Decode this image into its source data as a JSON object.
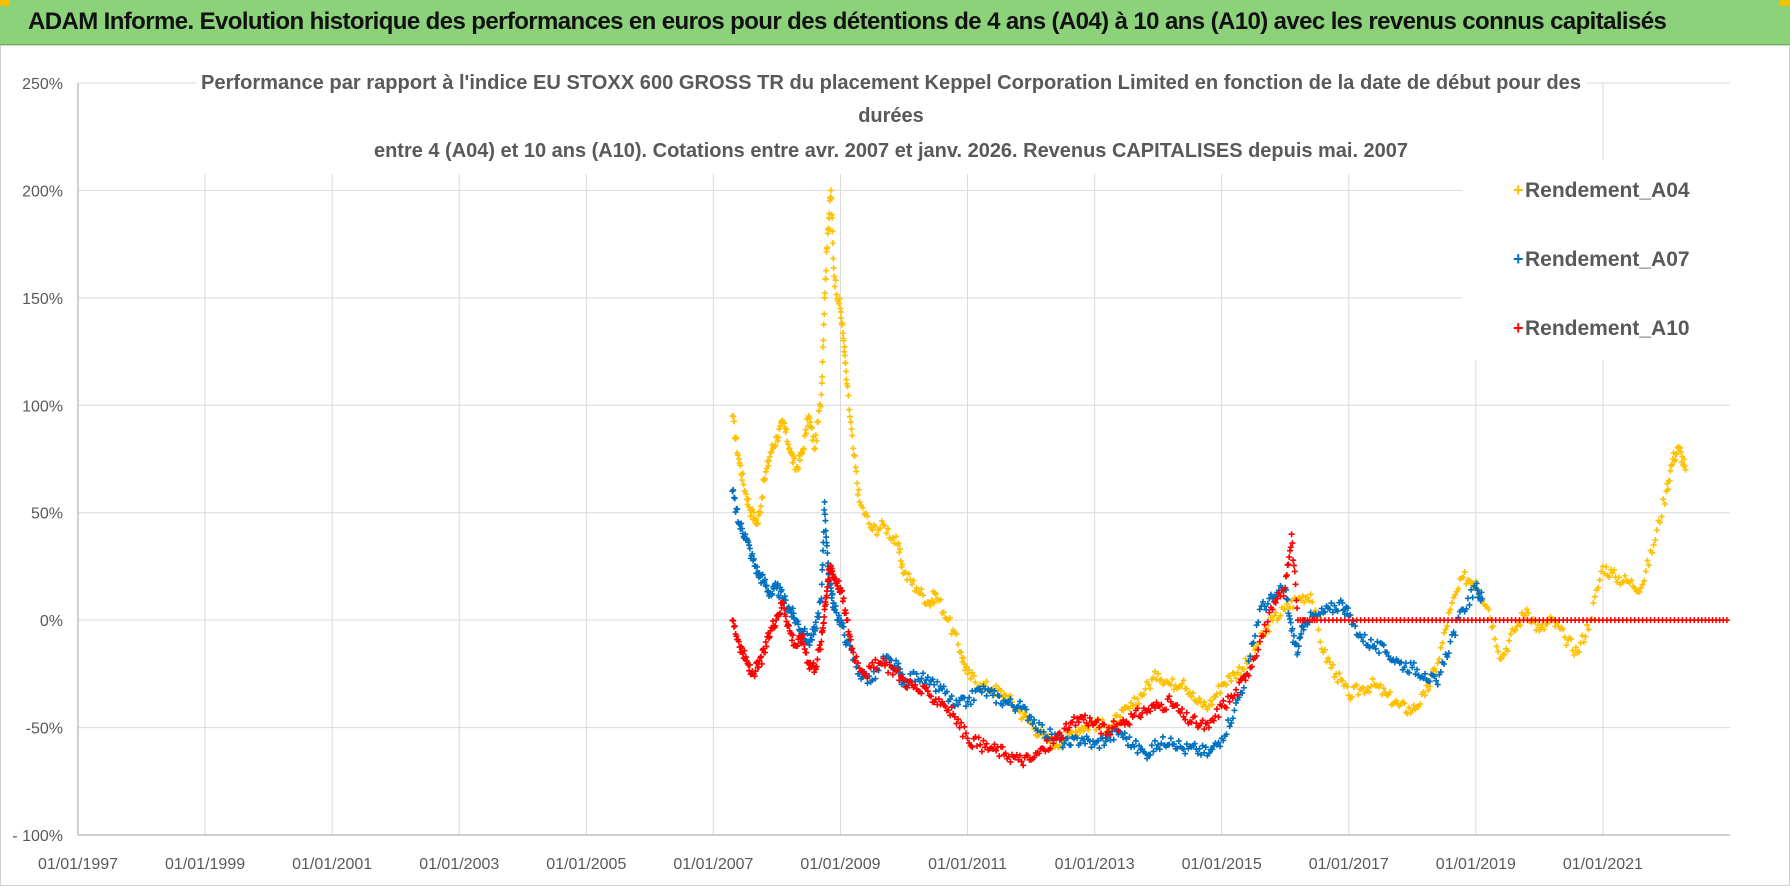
{
  "header": {
    "title": "ADAM Informe. Evolution historique des performances en euros pour des détentions de 4 ans (A04) à 10 ans (A10) avec les revenus connus capitalisés"
  },
  "colors": {
    "A04": "#ffc000",
    "A07": "#0070c0",
    "A10": "#ff0000",
    "header_bg": "#8cd27a",
    "grid": "#d9d9d9",
    "text": "#595959"
  },
  "chart_data": {
    "type": "scatter",
    "title_lines": [
      "Performance par rapport à l'indice EU STOXX 600 GROSS TR  du placement Keppel Corporation Limited en fonction de la date de début pour des",
      "durées",
      "entre 4 (A04) et 10 ans (A10).  Cotations entre avr. 2007 et janv. 2026. Revenus CAPITALISES depuis mai. 2007"
    ],
    "xlabel": "",
    "ylabel": "",
    "x_unit": "year",
    "xlim": [
      1997.0,
      2023.0
    ],
    "ylim": [
      -100,
      250
    ],
    "x_ticks": [
      {
        "value": 1997.0,
        "label": "01/01/1997"
      },
      {
        "value": 1999.0,
        "label": "01/01/1999"
      },
      {
        "value": 2001.0,
        "label": "01/01/2001"
      },
      {
        "value": 2003.0,
        "label": "01/01/2003"
      },
      {
        "value": 2005.0,
        "label": "01/01/2005"
      },
      {
        "value": 2007.0,
        "label": "01/01/2007"
      },
      {
        "value": 2009.0,
        "label": "01/01/2009"
      },
      {
        "value": 2011.0,
        "label": "01/01/2011"
      },
      {
        "value": 2013.0,
        "label": "01/01/2013"
      },
      {
        "value": 2015.0,
        "label": "01/01/2015"
      },
      {
        "value": 2017.0,
        "label": "01/01/2017"
      },
      {
        "value": 2019.0,
        "label": "01/01/2019"
      },
      {
        "value": 2021.0,
        "label": "01/01/2021"
      }
    ],
    "y_ticks": [
      {
        "value": 250,
        "label": "250%"
      },
      {
        "value": 200,
        "label": "200%"
      },
      {
        "value": 150,
        "label": "150%"
      },
      {
        "value": 100,
        "label": "100%"
      },
      {
        "value": 50,
        "label": "50%"
      },
      {
        "value": 0,
        "label": "0%"
      },
      {
        "value": -50,
        "label": "-50%"
      },
      {
        "value": -100,
        "label": "- 100%"
      }
    ],
    "grid": true,
    "legend_position": "top-right",
    "series": [
      {
        "name": "Rendement_A04",
        "color": "#ffc000",
        "points": [
          [
            2007.3,
            95
          ],
          [
            2007.4,
            75
          ],
          [
            2007.5,
            60
          ],
          [
            2007.6,
            50
          ],
          [
            2007.7,
            45
          ],
          [
            2007.8,
            65
          ],
          [
            2007.9,
            78
          ],
          [
            2008.0,
            85
          ],
          [
            2008.1,
            92
          ],
          [
            2008.2,
            80
          ],
          [
            2008.3,
            70
          ],
          [
            2008.4,
            78
          ],
          [
            2008.5,
            95
          ],
          [
            2008.6,
            80
          ],
          [
            2008.7,
            105
          ],
          [
            2008.75,
            150
          ],
          [
            2008.8,
            180
          ],
          [
            2008.85,
            200
          ],
          [
            2008.9,
            160
          ],
          [
            2009.0,
            145
          ],
          [
            2009.05,
            130
          ],
          [
            2009.1,
            110
          ],
          [
            2009.2,
            80
          ],
          [
            2009.3,
            55
          ],
          [
            2009.5,
            42
          ],
          [
            2009.7,
            44
          ],
          [
            2009.9,
            35
          ],
          [
            2010.0,
            22
          ],
          [
            2010.2,
            15
          ],
          [
            2010.4,
            8
          ],
          [
            2010.5,
            12
          ],
          [
            2010.7,
            0
          ],
          [
            2010.9,
            -15
          ],
          [
            2011.0,
            -25
          ],
          [
            2011.2,
            -30
          ],
          [
            2011.4,
            -32
          ],
          [
            2011.6,
            -35
          ],
          [
            2011.8,
            -42
          ],
          [
            2012.0,
            -48
          ],
          [
            2012.2,
            -55
          ],
          [
            2012.4,
            -58
          ],
          [
            2012.6,
            -53
          ],
          [
            2012.8,
            -50
          ],
          [
            2013.0,
            -48
          ],
          [
            2013.2,
            -50
          ],
          [
            2013.4,
            -45
          ],
          [
            2013.6,
            -40
          ],
          [
            2013.8,
            -32
          ],
          [
            2014.0,
            -25
          ],
          [
            2014.2,
            -30
          ],
          [
            2014.4,
            -28
          ],
          [
            2014.6,
            -38
          ],
          [
            2014.8,
            -40
          ],
          [
            2015.0,
            -30
          ],
          [
            2015.2,
            -25
          ],
          [
            2015.4,
            -20
          ],
          [
            2015.6,
            -10
          ],
          [
            2015.8,
            0
          ],
          [
            2016.0,
            5
          ],
          [
            2016.2,
            10
          ],
          [
            2016.4,
            12
          ],
          [
            2016.6,
            -15
          ],
          [
            2016.8,
            -25
          ],
          [
            2017.0,
            -35
          ],
          [
            2017.2,
            -32
          ],
          [
            2017.4,
            -30
          ],
          [
            2017.6,
            -35
          ],
          [
            2017.8,
            -40
          ],
          [
            2018.0,
            -42
          ],
          [
            2018.2,
            -35
          ],
          [
            2018.4,
            -20
          ],
          [
            2018.6,
            5
          ],
          [
            2018.8,
            20
          ],
          [
            2019.0,
            18
          ],
          [
            2019.2,
            5
          ],
          [
            2019.4,
            -18
          ],
          [
            2019.6,
            -5
          ],
          [
            2019.8,
            5
          ],
          [
            2020.0,
            -5
          ],
          [
            2020.2,
            0
          ],
          [
            2020.4,
            -8
          ],
          [
            2020.6,
            -15
          ],
          [
            2020.8,
            0
          ],
          [
            2021.0,
            25
          ],
          [
            2021.2,
            20
          ],
          [
            2021.4,
            18
          ],
          [
            2021.6,
            15
          ],
          [
            2021.8,
            35
          ],
          [
            2022.0,
            60
          ],
          [
            2022.1,
            75
          ],
          [
            2022.2,
            80
          ],
          [
            2022.3,
            70
          ]
        ]
      },
      {
        "name": "Rendement_A07",
        "color": "#0070c0",
        "points": [
          [
            2007.3,
            60
          ],
          [
            2007.4,
            45
          ],
          [
            2007.5,
            40
          ],
          [
            2007.6,
            30
          ],
          [
            2007.7,
            22
          ],
          [
            2007.8,
            18
          ],
          [
            2007.9,
            12
          ],
          [
            2008.0,
            15
          ],
          [
            2008.1,
            10
          ],
          [
            2008.2,
            5
          ],
          [
            2008.3,
            0
          ],
          [
            2008.4,
            -5
          ],
          [
            2008.5,
            -10
          ],
          [
            2008.6,
            -5
          ],
          [
            2008.7,
            10
          ],
          [
            2008.75,
            55
          ],
          [
            2008.8,
            25
          ],
          [
            2008.85,
            15
          ],
          [
            2008.9,
            5
          ],
          [
            2009.0,
            0
          ],
          [
            2009.1,
            -10
          ],
          [
            2009.3,
            -25
          ],
          [
            2009.5,
            -28
          ],
          [
            2009.7,
            -18
          ],
          [
            2009.9,
            -22
          ],
          [
            2010.0,
            -30
          ],
          [
            2010.2,
            -25
          ],
          [
            2010.4,
            -30
          ],
          [
            2010.6,
            -32
          ],
          [
            2010.8,
            -40
          ],
          [
            2011.0,
            -38
          ],
          [
            2011.2,
            -32
          ],
          [
            2011.4,
            -35
          ],
          [
            2011.6,
            -38
          ],
          [
            2011.8,
            -40
          ],
          [
            2012.0,
            -45
          ],
          [
            2012.2,
            -52
          ],
          [
            2012.4,
            -55
          ],
          [
            2012.6,
            -58
          ],
          [
            2012.8,
            -55
          ],
          [
            2013.0,
            -58
          ],
          [
            2013.2,
            -55
          ],
          [
            2013.4,
            -52
          ],
          [
            2013.6,
            -58
          ],
          [
            2013.8,
            -62
          ],
          [
            2014.0,
            -58
          ],
          [
            2014.2,
            -55
          ],
          [
            2014.4,
            -60
          ],
          [
            2014.6,
            -60
          ],
          [
            2014.8,
            -62
          ],
          [
            2015.0,
            -55
          ],
          [
            2015.2,
            -42
          ],
          [
            2015.4,
            -25
          ],
          [
            2015.6,
            5
          ],
          [
            2015.8,
            10
          ],
          [
            2016.0,
            15
          ],
          [
            2016.1,
            -5
          ],
          [
            2016.2,
            -15
          ],
          [
            2016.3,
            0
          ],
          [
            2016.5,
            2
          ],
          [
            2016.7,
            5
          ],
          [
            2016.9,
            8
          ],
          [
            2017.0,
            2
          ],
          [
            2017.2,
            -8
          ],
          [
            2017.4,
            -12
          ],
          [
            2017.6,
            -15
          ],
          [
            2017.8,
            -20
          ],
          [
            2018.0,
            -22
          ],
          [
            2018.2,
            -25
          ],
          [
            2018.4,
            -30
          ],
          [
            2018.6,
            -10
          ],
          [
            2018.8,
            5
          ],
          [
            2019.0,
            15
          ],
          [
            2019.1,
            10
          ]
        ]
      },
      {
        "name": "Rendement_A10",
        "color": "#ff0000",
        "points": [
          [
            2007.3,
            0
          ],
          [
            2007.4,
            -10
          ],
          [
            2007.5,
            -18
          ],
          [
            2007.6,
            -25
          ],
          [
            2007.7,
            -22
          ],
          [
            2007.8,
            -15
          ],
          [
            2007.9,
            -5
          ],
          [
            2008.0,
            2
          ],
          [
            2008.1,
            8
          ],
          [
            2008.2,
            -5
          ],
          [
            2008.3,
            -12
          ],
          [
            2008.4,
            -8
          ],
          [
            2008.5,
            -20
          ],
          [
            2008.6,
            -22
          ],
          [
            2008.7,
            -10
          ],
          [
            2008.75,
            5
          ],
          [
            2008.8,
            18
          ],
          [
            2008.85,
            25
          ],
          [
            2008.9,
            20
          ],
          [
            2009.0,
            15
          ],
          [
            2009.1,
            0
          ],
          [
            2009.2,
            -15
          ],
          [
            2009.4,
            -25
          ],
          [
            2009.6,
            -20
          ],
          [
            2009.8,
            -22
          ],
          [
            2010.0,
            -28
          ],
          [
            2010.2,
            -32
          ],
          [
            2010.4,
            -35
          ],
          [
            2010.6,
            -38
          ],
          [
            2010.8,
            -45
          ],
          [
            2011.0,
            -55
          ],
          [
            2011.2,
            -58
          ],
          [
            2011.4,
            -60
          ],
          [
            2011.6,
            -62
          ],
          [
            2011.8,
            -65
          ],
          [
            2012.0,
            -65
          ],
          [
            2012.2,
            -60
          ],
          [
            2012.4,
            -55
          ],
          [
            2012.6,
            -50
          ],
          [
            2012.8,
            -45
          ],
          [
            2013.0,
            -48
          ],
          [
            2013.2,
            -52
          ],
          [
            2013.4,
            -48
          ],
          [
            2013.6,
            -45
          ],
          [
            2013.8,
            -42
          ],
          [
            2014.0,
            -40
          ],
          [
            2014.2,
            -38
          ],
          [
            2014.4,
            -45
          ],
          [
            2014.6,
            -48
          ],
          [
            2014.8,
            -50
          ],
          [
            2015.0,
            -40
          ],
          [
            2015.2,
            -35
          ],
          [
            2015.4,
            -25
          ],
          [
            2015.6,
            -10
          ],
          [
            2015.8,
            5
          ],
          [
            2016.0,
            15
          ],
          [
            2016.1,
            40
          ],
          [
            2016.2,
            0
          ],
          [
            2016.5,
            0
          ],
          [
            2017.0,
            0
          ],
          [
            2017.5,
            0
          ],
          [
            2018.0,
            0
          ],
          [
            2018.5,
            0
          ],
          [
            2019.0,
            0
          ],
          [
            2019.5,
            0
          ],
          [
            2020.0,
            0
          ],
          [
            2020.5,
            0
          ],
          [
            2021.0,
            0
          ],
          [
            2021.5,
            0
          ],
          [
            2022.0,
            0
          ],
          [
            2022.5,
            0
          ],
          [
            2022.95,
            0
          ]
        ]
      }
    ]
  }
}
